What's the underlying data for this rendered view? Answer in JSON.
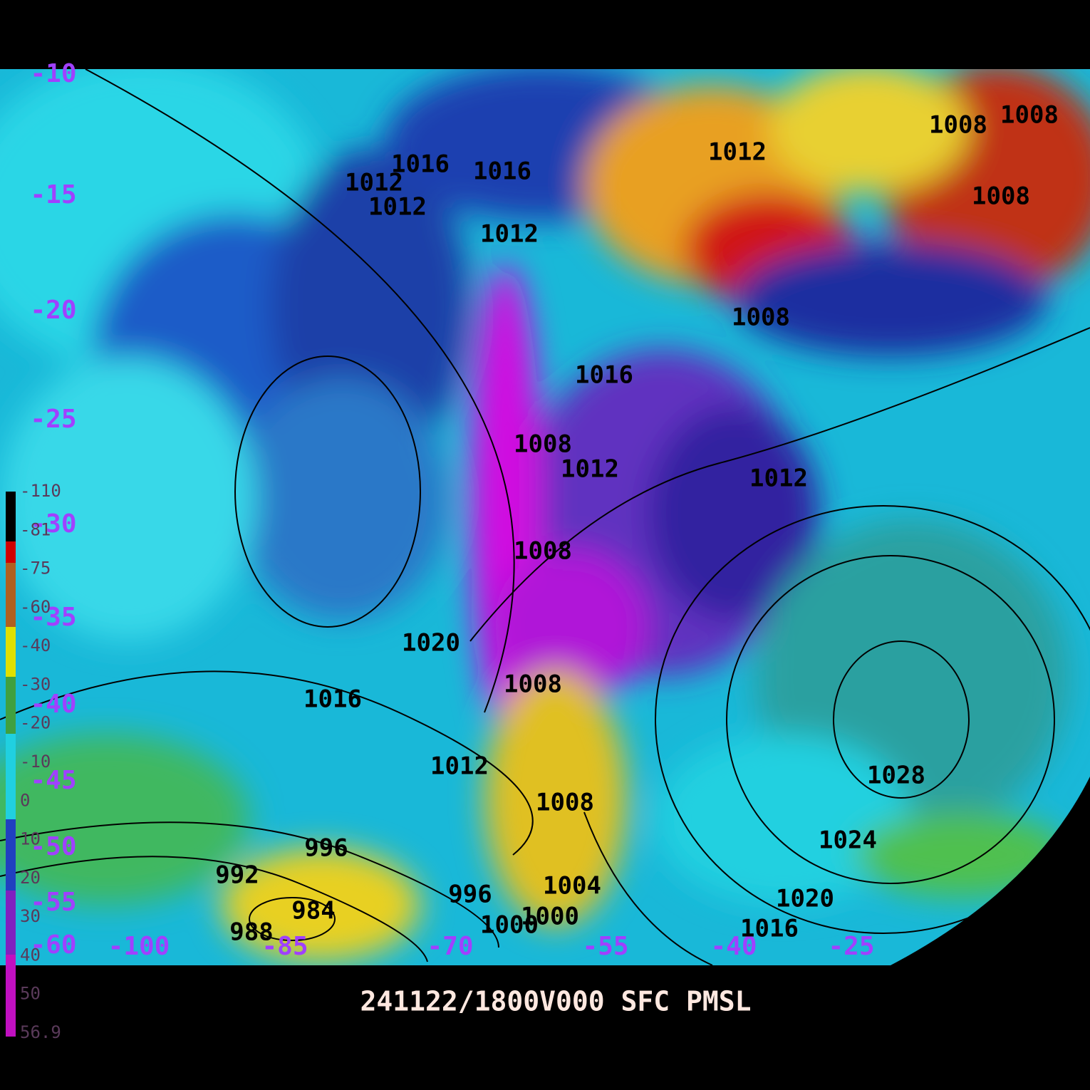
{
  "map": {
    "title": "241122/1800V000  SFC  PMSL",
    "latitude_labels": [
      "-10",
      "-15",
      "-20",
      "-25",
      "-30",
      "-35",
      "-40",
      "-45",
      "-50",
      "-55",
      "-60"
    ],
    "longitude_labels": [
      "-100",
      "-85",
      "-70",
      "-55",
      "-40",
      "-25"
    ],
    "isobar_labels": [
      "1016",
      "1016",
      "1012",
      "1012",
      "1012",
      "1012",
      "1008",
      "1008",
      "1008",
      "1008",
      "1016",
      "1008",
      "1012",
      "1012",
      "1008",
      "1020",
      "1008",
      "1016",
      "1012",
      "1008",
      "1028",
      "1024",
      "1020",
      "1016",
      "996",
      "992",
      "984",
      "988",
      "996",
      "1000",
      "1000",
      "1004"
    ],
    "colorbar_labels": [
      "-110",
      "-81",
      "-75",
      "-60",
      "-40",
      "-30",
      "-20",
      "-10",
      "0",
      "10",
      "20",
      "30",
      "40",
      "50",
      "56.9"
    ]
  }
}
